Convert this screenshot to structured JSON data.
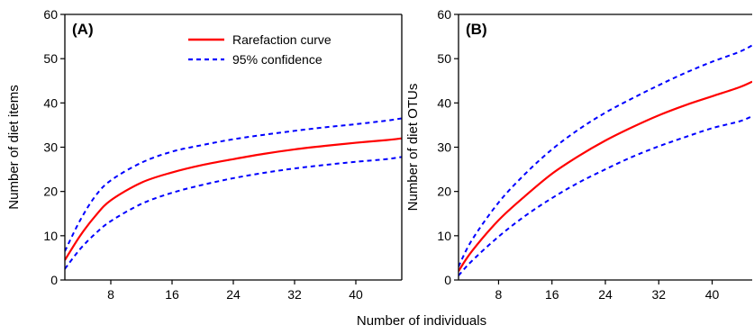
{
  "shared_xlabel": "Number of individuals",
  "legend": [
    {
      "label": "Rarefaction curve",
      "color": "#ff0000",
      "style": "solid"
    },
    {
      "label": "95% confidence",
      "color": "#0000ff",
      "style": "dashed"
    }
  ],
  "chart_data": [
    {
      "type": "line",
      "panel_label": "(A)",
      "ylabel": "Number of diet items",
      "xlim": [
        2,
        46
      ],
      "ylim": [
        0,
        60
      ],
      "xticks": [
        8,
        16,
        24,
        32,
        40
      ],
      "yticks": [
        0,
        10,
        20,
        30,
        40,
        50,
        60
      ],
      "grid": false,
      "legend_position": "top-right",
      "series": [
        {
          "name": "Rarefaction curve",
          "color": "#ff0000",
          "style": "solid",
          "x": [
            2,
            4,
            6,
            8,
            12,
            16,
            20,
            24,
            28,
            32,
            36,
            40,
            44,
            46
          ],
          "y": [
            4.5,
            10,
            14.5,
            18,
            22,
            24.3,
            26,
            27.3,
            28.5,
            29.5,
            30.3,
            31,
            31.6,
            32
          ]
        },
        {
          "name": "95% confidence",
          "color": "#0000ff",
          "style": "dashed",
          "x": [
            2,
            4,
            6,
            8,
            12,
            16,
            20,
            24,
            28,
            32,
            36,
            40,
            44,
            46
          ],
          "y": [
            6.5,
            13.5,
            19,
            22.5,
            26.5,
            29,
            30.5,
            31.8,
            32.8,
            33.7,
            34.5,
            35.2,
            36,
            36.5
          ]
        },
        {
          "name": "95% confidence",
          "color": "#0000ff",
          "style": "dashed",
          "x": [
            2,
            4,
            6,
            8,
            12,
            16,
            20,
            24,
            28,
            32,
            36,
            40,
            44,
            46
          ],
          "y": [
            2.5,
            7,
            10.5,
            13.3,
            17.2,
            19.7,
            21.5,
            23,
            24.2,
            25.2,
            26,
            26.7,
            27.3,
            27.8
          ]
        }
      ]
    },
    {
      "type": "line",
      "panel_label": "(B)",
      "ylabel": "Number of diet OTUs",
      "xlim": [
        2,
        46
      ],
      "ylim": [
        0,
        60
      ],
      "xticks": [
        8,
        16,
        24,
        32,
        40
      ],
      "yticks": [
        0,
        10,
        20,
        30,
        40,
        50,
        60
      ],
      "grid": false,
      "series": [
        {
          "name": "Rarefaction curve",
          "color": "#ff0000",
          "style": "solid",
          "x": [
            2,
            4,
            8,
            12,
            16,
            20,
            24,
            28,
            32,
            36,
            40,
            44,
            46
          ],
          "y": [
            2,
            6.5,
            13.5,
            19,
            24,
            28,
            31.5,
            34.5,
            37.2,
            39.5,
            41.5,
            43.5,
            44.8
          ]
        },
        {
          "name": "95% confidence",
          "color": "#0000ff",
          "style": "dashed",
          "x": [
            2,
            4,
            8,
            12,
            16,
            20,
            24,
            28,
            32,
            36,
            40,
            44,
            46
          ],
          "y": [
            3,
            9,
            17.5,
            24,
            29.5,
            34,
            37.8,
            41,
            44,
            46.8,
            49.3,
            51.5,
            53
          ]
        },
        {
          "name": "95% confidence",
          "color": "#0000ff",
          "style": "dashed",
          "x": [
            2,
            4,
            8,
            12,
            16,
            20,
            24,
            28,
            32,
            36,
            40,
            44,
            46
          ],
          "y": [
            1,
            4.3,
            9.8,
            14.5,
            18.5,
            22,
            25,
            27.8,
            30.2,
            32.3,
            34.3,
            35.8,
            37
          ]
        }
      ]
    }
  ]
}
